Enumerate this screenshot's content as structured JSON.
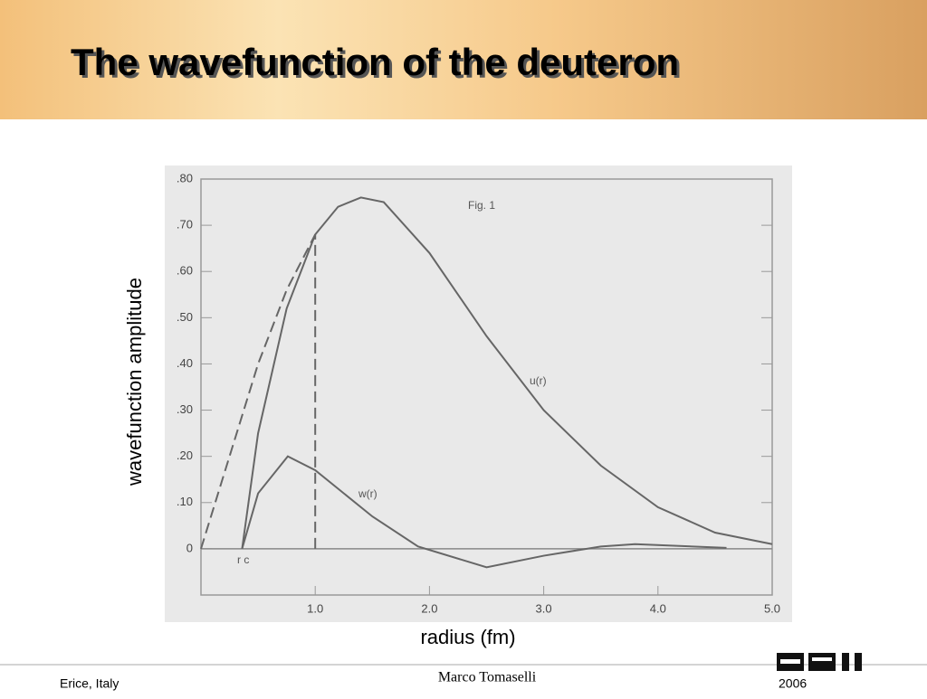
{
  "header": {
    "title": "The wavefunction of the deuteron"
  },
  "chart_data": {
    "type": "line",
    "xlabel": "radius (fm)",
    "ylabel": "wavefunction amplitude",
    "xlim": [
      0,
      5
    ],
    "ylim": [
      -0.1,
      0.8
    ],
    "xticks": [
      {
        "value": 1,
        "label": "1.0"
      },
      {
        "value": 2,
        "label": "2.0"
      },
      {
        "value": 3,
        "label": "3.0"
      },
      {
        "value": 4,
        "label": "4.0"
      },
      {
        "value": 5,
        "label": "5.0"
      }
    ],
    "yticks": [
      0,
      {
        "value": 0.1,
        "label": ".10"
      },
      {
        "value": 0.2,
        "label": ".20"
      },
      {
        "value": 0.3,
        "label": ".30"
      },
      {
        "value": 0.4,
        "label": ".40"
      },
      {
        "value": 0.5,
        "label": ".50"
      },
      {
        "value": 0.6,
        "label": ".60"
      },
      {
        "value": 0.7,
        "label": ".70"
      },
      {
        "value": 0.8,
        "label": ".80"
      }
    ],
    "series": [
      {
        "name": "u(r)",
        "color": "#666666",
        "dashed": false,
        "x": [
          0.36,
          0.5,
          0.75,
          1.0,
          1.2,
          1.4,
          1.6,
          2.0,
          2.5,
          3.0,
          3.5,
          4.0,
          4.5,
          5.0
        ],
        "values": [
          0,
          0.25,
          0.52,
          0.68,
          0.74,
          0.76,
          0.75,
          0.64,
          0.46,
          0.3,
          0.18,
          0.09,
          0.035,
          0.01
        ]
      },
      {
        "name": "w(r)",
        "color": "#666666",
        "dashed": false,
        "x": [
          0.36,
          0.5,
          0.76,
          1.0,
          1.5,
          1.9,
          2.5,
          3.0,
          3.5,
          3.8,
          4.6
        ],
        "values": [
          0,
          0.12,
          0.2,
          0.17,
          0.07,
          0.005,
          -0.04,
          -0.015,
          0.005,
          0.01,
          0.002
        ]
      },
      {
        "color": "#666666",
        "dashed": true,
        "x": [
          0,
          0.25,
          0.5,
          0.75,
          1.0
        ],
        "values": [
          0,
          0.2,
          0.4,
          0.56,
          0.68
        ]
      },
      {
        "color": "#666666",
        "dashed": true,
        "x": [
          1.0,
          1.0
        ],
        "values": [
          0,
          0.68
        ]
      }
    ],
    "annotations": [
      "Fig. 1",
      "r c"
    ]
  },
  "footer": {
    "left": "Erice, Italy",
    "center": "Marco Tomaselli",
    "right": "2006"
  }
}
